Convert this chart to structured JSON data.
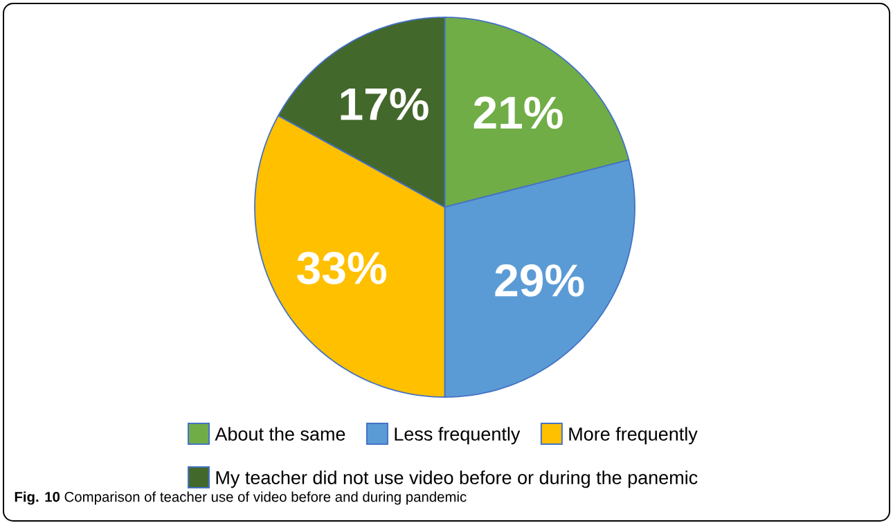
{
  "chart_data": {
    "type": "pie",
    "categories": [
      "About the same",
      "Less frequently",
      "More frequently",
      "My teacher did not use video before or during the panemic"
    ],
    "values": [
      21,
      29,
      33,
      17
    ],
    "colors": [
      "#70ad47",
      "#5b9bd5",
      "#ffc000",
      "#43682b"
    ],
    "value_labels": [
      "21%",
      "29%",
      "33%",
      "17%"
    ],
    "legend": "bottom",
    "annotations": [
      "**Fig. 10** Comparison of teacher use of video before and during pandemic"
    ]
  }
}
